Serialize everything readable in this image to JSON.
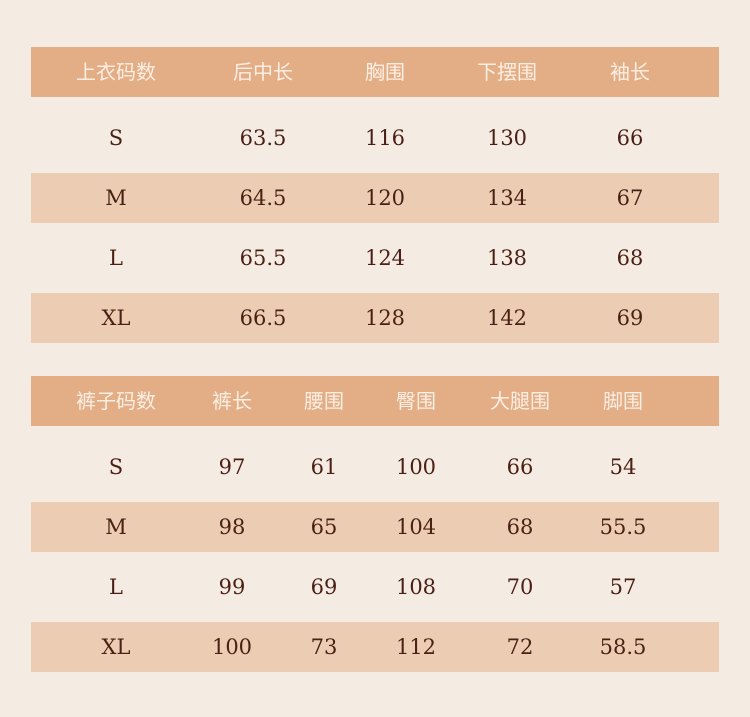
{
  "tops": {
    "headers": [
      "上衣码数",
      "后中长",
      "胸围",
      "下摆围",
      "袖长"
    ],
    "rows": [
      [
        "S",
        "63.5",
        "116",
        "130",
        "66"
      ],
      [
        "M",
        "64.5",
        "120",
        "134",
        "67"
      ],
      [
        "L",
        "65.5",
        "124",
        "138",
        "68"
      ],
      [
        "XL",
        "66.5",
        "128",
        "142",
        "69"
      ]
    ]
  },
  "pants": {
    "headers": [
      "裤子码数",
      "裤长",
      "腰围",
      "臀围",
      "大腿围",
      "脚围"
    ],
    "rows": [
      [
        "S",
        "97",
        "61",
        "100",
        "66",
        "54"
      ],
      [
        "M",
        "98",
        "65",
        "104",
        "68",
        "55.5"
      ],
      [
        "L",
        "99",
        "69",
        "108",
        "70",
        "57"
      ],
      [
        "XL",
        "100",
        "73",
        "112",
        "72",
        "58.5"
      ]
    ]
  },
  "colors": {
    "background": "#f4ebe3",
    "header": "#e3ae86",
    "stripe": "#eccdb3",
    "text": "#4a1f14"
  }
}
